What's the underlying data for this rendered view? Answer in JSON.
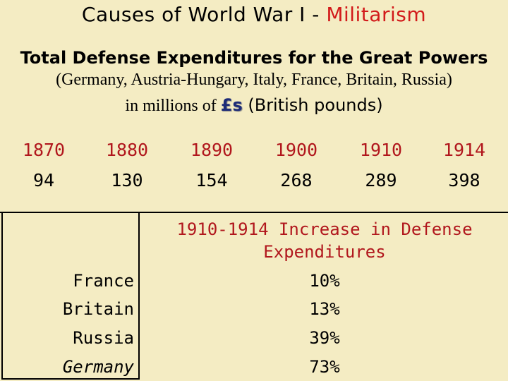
{
  "title": {
    "prefix": "Causes of World War I - ",
    "accent": "Militarism"
  },
  "subtitle": "Total Defense Expenditures for the Great Powers",
  "countries_line": "(Germany, Austria-Hungary, Italy, France, Britain, Russia)",
  "units_line": {
    "prefix": "in millions of ",
    "pounds": "£s",
    "suffix": " (British pounds)"
  },
  "expenditures": {
    "years": [
      "1870",
      "1880",
      "1890",
      "1900",
      "1910",
      "1914"
    ],
    "values": [
      "94",
      "130",
      "154",
      "268",
      "289",
      "398"
    ]
  },
  "increase_table": {
    "heading_line1": "1910-1914 Increase in Defense",
    "heading_line2": "Expenditures",
    "rows": [
      {
        "country": "France",
        "increase": "10%"
      },
      {
        "country": "Britain",
        "increase": "13%"
      },
      {
        "country": "Russia",
        "increase": "39%"
      },
      {
        "country": "Germany",
        "increase": "73%"
      }
    ]
  },
  "colors": {
    "background": "#f4ecc3",
    "accent_red": "#b1171d",
    "pounds_blue": "#1d2c78"
  }
}
